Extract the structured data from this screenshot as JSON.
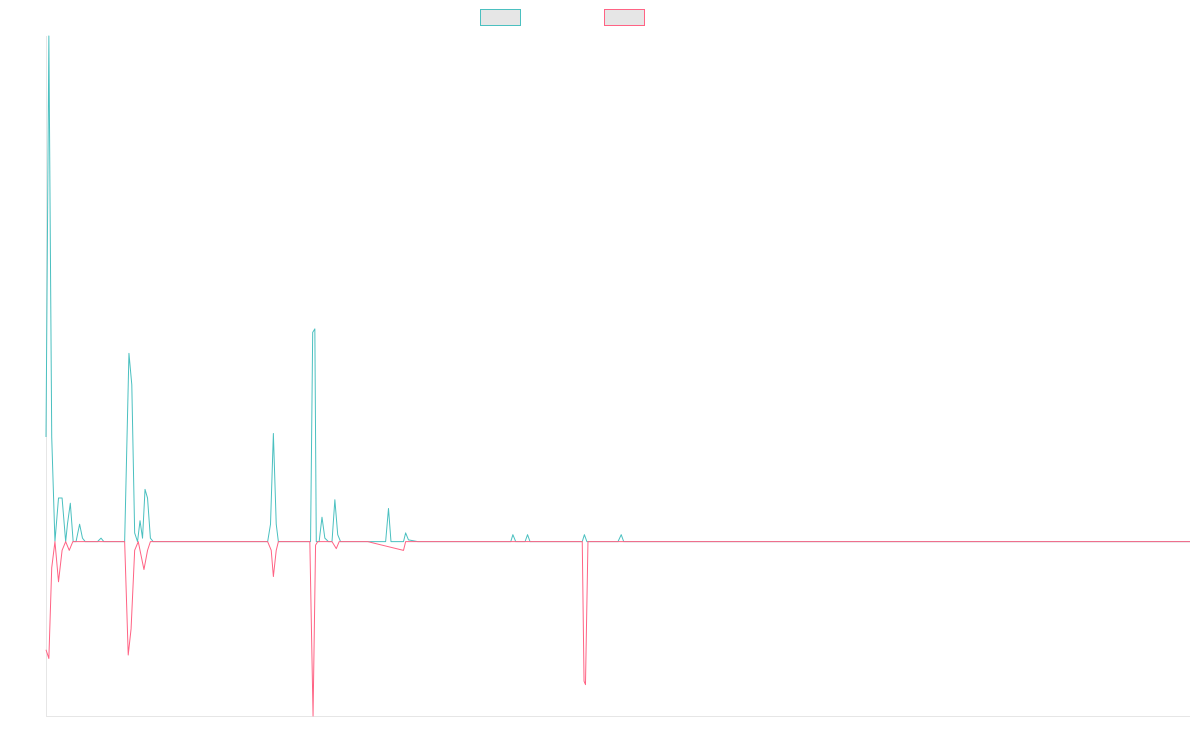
{
  "chart_data": {
    "type": "line",
    "title": "",
    "xlabel": "",
    "ylabel": "",
    "grid": false,
    "legend": "top-center",
    "xlim": [
      0,
      320
    ],
    "ylim": [
      -1.0,
      2.9
    ],
    "series": [
      {
        "color": "#4bc0c0",
        "fill": "#e6e6e6",
        "points": [
          [
            0,
            0.6
          ],
          [
            0.8,
            2.9
          ],
          [
            1.6,
            0.6
          ],
          [
            2.5,
            0
          ],
          [
            3.5,
            0.25
          ],
          [
            4.5,
            0.25
          ],
          [
            5.5,
            0
          ],
          [
            6,
            0.1
          ],
          [
            6.8,
            0.22
          ],
          [
            7.6,
            0
          ],
          [
            8.4,
            0
          ],
          [
            9.4,
            0.1
          ],
          [
            10.2,
            0.02
          ],
          [
            11,
            0
          ],
          [
            13,
            0
          ],
          [
            14.4,
            0
          ],
          [
            15.4,
            0.02
          ],
          [
            16.2,
            0
          ],
          [
            17.5,
            0
          ],
          [
            19,
            0
          ],
          [
            22,
            0
          ],
          [
            23.2,
            1.08
          ],
          [
            24,
            0.9
          ],
          [
            24.8,
            0.05
          ],
          [
            25.6,
            0
          ],
          [
            26.3,
            0.12
          ],
          [
            27,
            0.02
          ],
          [
            27.7,
            0.3
          ],
          [
            28.4,
            0.25
          ],
          [
            29.2,
            0.02
          ],
          [
            30,
            0
          ],
          [
            31.5,
            0
          ],
          [
            32,
            0
          ],
          [
            34,
            0
          ],
          [
            36,
            0
          ],
          [
            38,
            0
          ],
          [
            40,
            0
          ],
          [
            44,
            0
          ],
          [
            48,
            0
          ],
          [
            52,
            0
          ],
          [
            58,
            0
          ],
          [
            62,
            0
          ],
          [
            62.8,
            0.1
          ],
          [
            63.6,
            0.62
          ],
          [
            64.4,
            0.1
          ],
          [
            65,
            0
          ],
          [
            70,
            0
          ],
          [
            74,
            0
          ],
          [
            74.6,
            1.2
          ],
          [
            75.2,
            1.22
          ],
          [
            75.6,
            0
          ],
          [
            76.4,
            0
          ],
          [
            77.2,
            0.14
          ],
          [
            78,
            0.02
          ],
          [
            79,
            0
          ],
          [
            80,
            0
          ],
          [
            80.8,
            0.24
          ],
          [
            81.6,
            0.04
          ],
          [
            82.4,
            0
          ],
          [
            84,
            0
          ],
          [
            88,
            0
          ],
          [
            94,
            0
          ],
          [
            95,
            0
          ],
          [
            95.8,
            0.19
          ],
          [
            96.5,
            0
          ],
          [
            100,
            0
          ],
          [
            100.6,
            0.05
          ],
          [
            101.4,
            0.01
          ],
          [
            104,
            0
          ],
          [
            110,
            0
          ],
          [
            115,
            0
          ],
          [
            118,
            0
          ],
          [
            120,
            0
          ],
          [
            124,
            0
          ],
          [
            130,
            0
          ],
          [
            130.6,
            0.04
          ],
          [
            131.4,
            0
          ],
          [
            134,
            0
          ],
          [
            134.7,
            0.04
          ],
          [
            135.4,
            0
          ],
          [
            145,
            0
          ],
          [
            150,
            0
          ],
          [
            150.6,
            0.04
          ],
          [
            151.3,
            0
          ],
          [
            152,
            0
          ],
          [
            156,
            0
          ],
          [
            160,
            0
          ],
          [
            160.9,
            0.04
          ],
          [
            161.6,
            0
          ],
          [
            165,
            0
          ],
          [
            170,
            0
          ],
          [
            180,
            0
          ],
          [
            200,
            0
          ],
          [
            250,
            0
          ],
          [
            320,
            0
          ]
        ]
      },
      {
        "color": "#ff6384",
        "fill": "#e6e6e6",
        "points": [
          [
            0,
            -0.62
          ],
          [
            0.8,
            -0.67
          ],
          [
            1.6,
            -0.15
          ],
          [
            2.5,
            0
          ],
          [
            3.5,
            -0.23
          ],
          [
            4.5,
            -0.05
          ],
          [
            5.5,
            0
          ],
          [
            6.5,
            -0.05
          ],
          [
            7.5,
            0
          ],
          [
            9,
            0
          ],
          [
            11,
            0
          ],
          [
            14,
            0
          ],
          [
            18,
            0
          ],
          [
            22,
            0
          ],
          [
            23,
            -0.65
          ],
          [
            23.8,
            -0.5
          ],
          [
            24.8,
            -0.05
          ],
          [
            25.8,
            0
          ],
          [
            27.4,
            -0.16
          ],
          [
            28.4,
            -0.05
          ],
          [
            29.2,
            0
          ],
          [
            31,
            0
          ],
          [
            35,
            0
          ],
          [
            42,
            0
          ],
          [
            50,
            0
          ],
          [
            60,
            0
          ],
          [
            62,
            0
          ],
          [
            63,
            -0.05
          ],
          [
            63.6,
            -0.2
          ],
          [
            64.4,
            -0.05
          ],
          [
            65,
            0
          ],
          [
            70,
            0
          ],
          [
            73.8,
            0
          ],
          [
            74.7,
            -1.0
          ],
          [
            75.4,
            -0.02
          ],
          [
            76,
            0
          ],
          [
            80,
            0
          ],
          [
            81.2,
            -0.04
          ],
          [
            82,
            0
          ],
          [
            90,
            0
          ],
          [
            100,
            -0.05
          ],
          [
            100.6,
            0
          ],
          [
            110,
            0
          ],
          [
            120,
            0
          ],
          [
            130,
            0
          ],
          [
            145,
            0
          ],
          [
            150,
            0
          ],
          [
            150.5,
            -0.8
          ],
          [
            150.9,
            -0.82
          ],
          [
            151.6,
            0
          ],
          [
            160,
            0
          ],
          [
            200,
            0
          ],
          [
            250,
            0
          ],
          [
            320,
            0
          ]
        ]
      }
    ]
  }
}
